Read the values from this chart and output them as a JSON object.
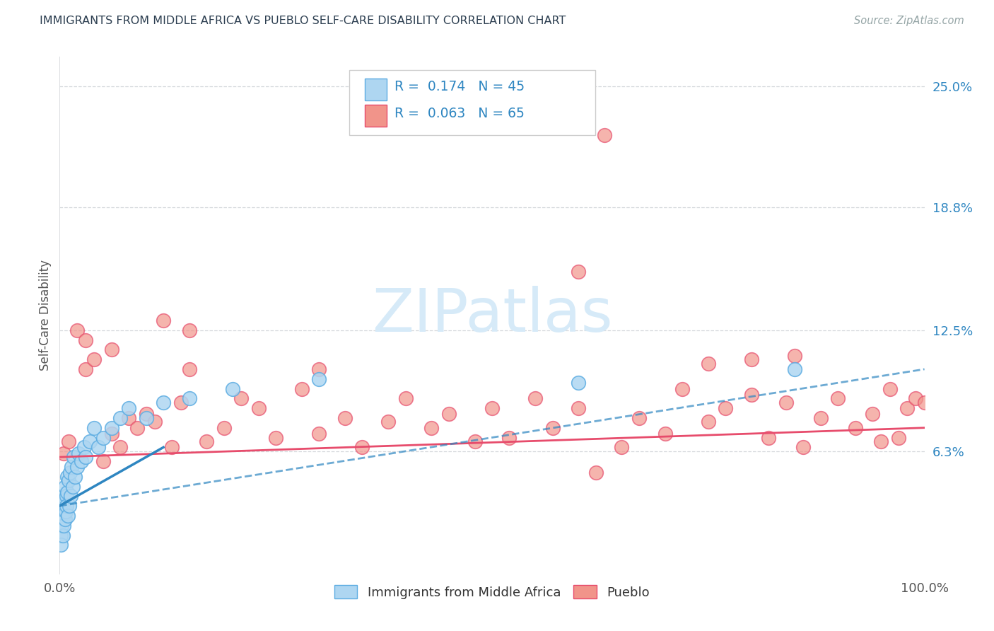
{
  "title": "IMMIGRANTS FROM MIDDLE AFRICA VS PUEBLO SELF-CARE DISABILITY CORRELATION CHART",
  "source": "Source: ZipAtlas.com",
  "ylabel": "Self-Care Disability",
  "xlim": [
    0,
    100
  ],
  "ylim": [
    0,
    26.5
  ],
  "yticks": [
    6.3,
    12.5,
    18.8,
    25.0
  ],
  "ytick_labels": [
    "6.3%",
    "12.5%",
    "18.8%",
    "25.0%"
  ],
  "xtick_labels": [
    "0.0%",
    "100.0%"
  ],
  "series1_label": "Immigrants from Middle Africa",
  "series2_label": "Pueblo",
  "series1_color": "#aed6f1",
  "series2_color": "#f1948a",
  "series1_edge_color": "#5dade2",
  "series2_edge_color": "#e74c6c",
  "series1_line_color": "#2e86c1",
  "series2_line_color": "#e74c6c",
  "background_color": "#ffffff",
  "grid_color": "#d5d8dc",
  "watermark_color": "#d6eaf8",
  "title_color": "#2c3e50",
  "source_color": "#95a5a6",
  "tick_color": "#2e86c1",
  "legend_text_color": "#2e86c1",
  "legend_r1": "R =  0.174   N = 45",
  "legend_r2": "R =  0.063   N = 65",
  "series1_x": [
    0.1,
    0.15,
    0.2,
    0.25,
    0.3,
    0.35,
    0.4,
    0.45,
    0.5,
    0.55,
    0.6,
    0.65,
    0.7,
    0.75,
    0.8,
    0.85,
    0.9,
    0.95,
    1.0,
    1.1,
    1.2,
    1.3,
    1.4,
    1.5,
    1.6,
    1.8,
    2.0,
    2.2,
    2.5,
    2.8,
    3.0,
    3.5,
    4.0,
    4.5,
    5.0,
    6.0,
    7.0,
    8.0,
    10.0,
    12.0,
    15.0,
    20.0,
    30.0,
    60.0,
    85.0
  ],
  "series1_y": [
    2.0,
    1.5,
    3.0,
    2.5,
    3.5,
    2.0,
    4.0,
    3.0,
    2.5,
    3.8,
    4.5,
    2.8,
    3.2,
    4.0,
    3.5,
    5.0,
    4.2,
    3.0,
    4.8,
    3.5,
    5.2,
    4.0,
    5.5,
    4.5,
    6.0,
    5.0,
    5.5,
    6.2,
    5.8,
    6.5,
    6.0,
    6.8,
    7.5,
    6.5,
    7.0,
    7.5,
    8.0,
    8.5,
    8.0,
    8.8,
    9.0,
    9.5,
    10.0,
    9.8,
    10.5
  ],
  "series2_x": [
    0.5,
    1.0,
    2.0,
    3.0,
    4.0,
    5.0,
    6.0,
    7.0,
    8.0,
    9.0,
    10.0,
    11.0,
    12.0,
    13.0,
    14.0,
    15.0,
    17.0,
    19.0,
    21.0,
    23.0,
    25.0,
    28.0,
    30.0,
    33.0,
    35.0,
    38.0,
    40.0,
    43.0,
    45.0,
    48.0,
    50.0,
    52.0,
    55.0,
    57.0,
    60.0,
    62.0,
    65.0,
    67.0,
    70.0,
    72.0,
    75.0,
    77.0,
    80.0,
    82.0,
    84.0,
    86.0,
    88.0,
    90.0,
    92.0,
    94.0,
    95.0,
    96.0,
    97.0,
    98.0,
    99.0,
    100.0,
    3.0,
    6.0,
    15.0,
    30.0,
    60.0,
    75.0,
    85.0,
    63.0,
    80.0
  ],
  "series2_y": [
    6.2,
    6.8,
    12.5,
    10.5,
    11.0,
    5.8,
    7.2,
    6.5,
    8.0,
    7.5,
    8.2,
    7.8,
    13.0,
    6.5,
    8.8,
    12.5,
    6.8,
    7.5,
    9.0,
    8.5,
    7.0,
    9.5,
    7.2,
    8.0,
    6.5,
    7.8,
    9.0,
    7.5,
    8.2,
    6.8,
    8.5,
    7.0,
    9.0,
    7.5,
    8.5,
    5.2,
    6.5,
    8.0,
    7.2,
    9.5,
    7.8,
    8.5,
    9.2,
    7.0,
    8.8,
    6.5,
    8.0,
    9.0,
    7.5,
    8.2,
    6.8,
    9.5,
    7.0,
    8.5,
    9.0,
    8.8,
    12.0,
    11.5,
    10.5,
    10.5,
    15.5,
    10.8,
    11.2,
    22.5,
    11.0
  ],
  "series1_trend": [
    0,
    100
  ],
  "series1_trend_y": [
    3.5,
    10.5
  ],
  "series2_trend": [
    0,
    100
  ],
  "series2_trend_y": [
    6.0,
    7.5
  ]
}
